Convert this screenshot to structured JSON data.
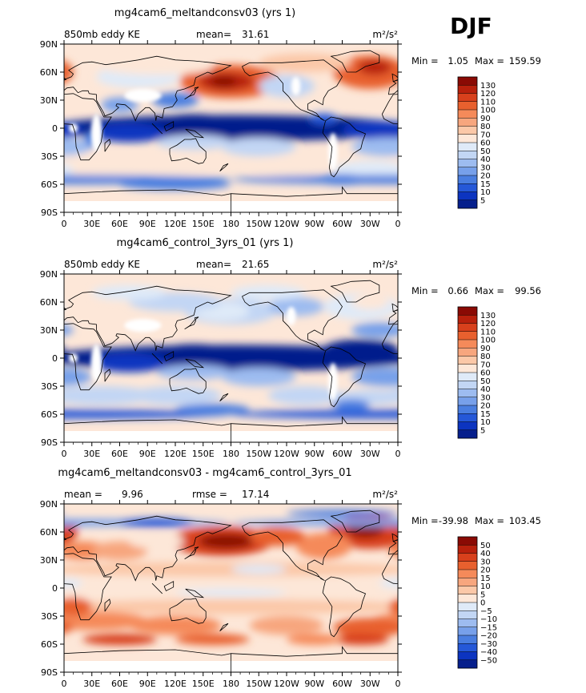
{
  "season": "DJF",
  "units": "m²/s²",
  "chart_data": [
    {
      "type": "heatmap",
      "title": "mg4cam6_meltandconsv03 (yrs 1)",
      "left_label": "850mb eddy KE",
      "stat_label": "mean=",
      "stat_value": "31.61",
      "units": "m²/s²",
      "min_label": "Min =",
      "min_value": "1.05",
      "max_label": "Max =",
      "max_value": "159.59",
      "colorbar_levels": [
        "130",
        "120",
        "110",
        "100",
        "90",
        "80",
        "70",
        "60",
        "50",
        "40",
        "30",
        "20",
        "15",
        "10",
        "5"
      ],
      "colors": [
        "#8a0a04",
        "#b8200c",
        "#d8401c",
        "#e8602e",
        "#f58a5a",
        "#f7a67e",
        "#fbc8a8",
        "#fde7d8",
        "#dfeaf8",
        "#c2d6f4",
        "#9dbcf0",
        "#77a0ea",
        "#4a7ee0",
        "#2558d8",
        "#0c34c0",
        "#061f8c"
      ],
      "color_index_base": 0,
      "x_ticks": [
        "0",
        "30E",
        "60E",
        "90E",
        "120E",
        "150E",
        "180",
        "150W",
        "120W",
        "90W",
        "60W",
        "30W",
        "0"
      ],
      "y_ticks": [
        "90N",
        "60N",
        "30N",
        "0",
        "30S",
        "60S",
        "90S"
      ],
      "xlim": [
        0,
        360
      ],
      "ylim": [
        -90,
        90
      ]
    },
    {
      "type": "heatmap",
      "title": "mg4cam6_control_3yrs_01 (yrs 1)",
      "left_label": "850mb eddy KE",
      "stat_label": "mean=",
      "stat_value": "21.65",
      "units": "m²/s²",
      "min_label": "Min =",
      "min_value": "0.66",
      "max_label": "Max =",
      "max_value": "99.56",
      "colorbar_levels": [
        "130",
        "120",
        "110",
        "100",
        "90",
        "80",
        "70",
        "60",
        "50",
        "40",
        "30",
        "20",
        "15",
        "10",
        "5"
      ],
      "colors": [
        "#8a0a04",
        "#b8200c",
        "#d8401c",
        "#e8602e",
        "#f58a5a",
        "#f7a67e",
        "#fbc8a8",
        "#fde7d8",
        "#dfeaf8",
        "#c2d6f4",
        "#9dbcf0",
        "#77a0ea",
        "#4a7ee0",
        "#2558d8",
        "#0c34c0",
        "#061f8c"
      ],
      "color_index_base": 0,
      "x_ticks": [
        "0",
        "30E",
        "60E",
        "90E",
        "120E",
        "150E",
        "180",
        "150W",
        "120W",
        "90W",
        "60W",
        "30W",
        "0"
      ],
      "y_ticks": [
        "90N",
        "60N",
        "30N",
        "0",
        "30S",
        "60S",
        "90S"
      ],
      "xlim": [
        0,
        360
      ],
      "ylim": [
        -90,
        90
      ]
    },
    {
      "type": "heatmap",
      "title": "mg4cam6_meltandconsv03 - mg4cam6_control_3yrs_01",
      "left_label": "mean =",
      "left_value": "9.96",
      "stat_label": "rmse =",
      "stat_value": "17.14",
      "units": "m²/s²",
      "min_label": "Min =",
      "min_value": "-39.98",
      "max_label": "Max =",
      "max_value": "103.45",
      "colorbar_levels": [
        "50",
        "40",
        "30",
        "20",
        "15",
        "10",
        "5",
        "0",
        "−5",
        "−10",
        "−15",
        "−20",
        "−30",
        "−40",
        "−50"
      ],
      "colors": [
        "#8a0a04",
        "#b8200c",
        "#d8401c",
        "#e8602e",
        "#f58a5a",
        "#f7a67e",
        "#fbc8a8",
        "#fde7d8",
        "#dfeaf8",
        "#c2d6f4",
        "#9dbcf0",
        "#77a0ea",
        "#4a7ee0",
        "#2558d8",
        "#0c34c0",
        "#061f8c"
      ],
      "color_index_base": 0,
      "x_ticks": [
        "0",
        "30E",
        "60E",
        "90E",
        "120E",
        "150E",
        "180",
        "150W",
        "120W",
        "90W",
        "60W",
        "30W",
        "0"
      ],
      "y_ticks": [
        "90N",
        "60N",
        "30N",
        "0",
        "30S",
        "60S",
        "90S"
      ],
      "xlim": [
        0,
        360
      ],
      "ylim": [
        -90,
        90
      ]
    }
  ]
}
